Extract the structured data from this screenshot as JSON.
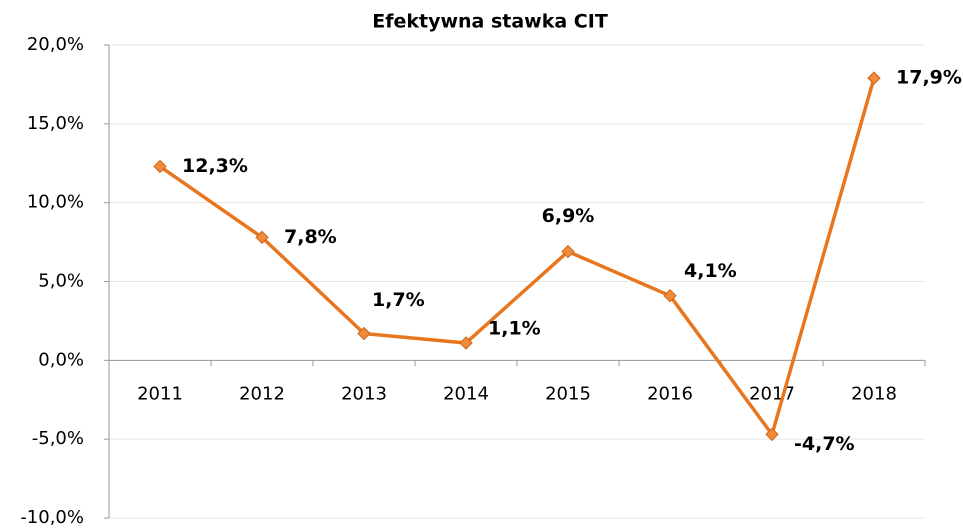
{
  "chart_data": {
    "type": "line",
    "title": "Efektywna stawka CIT",
    "categories": [
      "2011",
      "2012",
      "2013",
      "2014",
      "2015",
      "2016",
      "2017",
      "2018"
    ],
    "series": [
      {
        "color": "#e8761f",
        "values": [
          12.3,
          7.8,
          1.7,
          1.1,
          6.9,
          4.1,
          -4.7,
          17.9
        ],
        "value_labels": [
          "12,3%",
          "7,8%",
          "1,7%",
          "1,1%",
          "6,9%",
          "4,1%",
          "-4,7%",
          "17,9%"
        ]
      }
    ],
    "ylim": [
      -10,
      20
    ],
    "yticks": [
      {
        "value": -10,
        "label": "-10,0%"
      },
      {
        "value": -5,
        "label": "-5,0%"
      },
      {
        "value": 0,
        "label": "0,0%"
      },
      {
        "value": 5,
        "label": "5,0%"
      },
      {
        "value": 10,
        "label": "10,0%"
      },
      {
        "value": 15,
        "label": "15,0%"
      },
      {
        "value": 20,
        "label": "20,0%"
      }
    ],
    "grid": true
  }
}
